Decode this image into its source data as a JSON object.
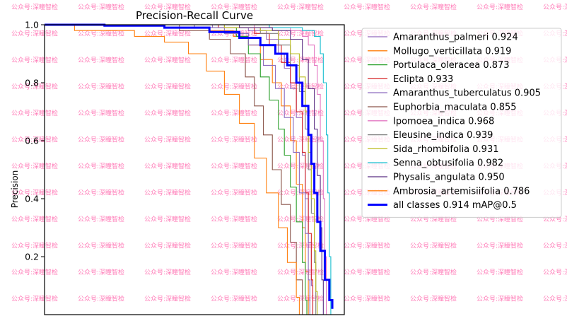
{
  "watermark": "公众号:深瞳智检",
  "chart_data": {
    "type": "line",
    "title": "Precision-Recall Curve",
    "xlabel": "",
    "ylabel": "Precision",
    "xlim": [
      0,
      1
    ],
    "ylim": [
      0,
      1
    ],
    "yticks": [
      0.2,
      0.4,
      0.6,
      0.8,
      1.0
    ],
    "ytick_labels": [
      "0.2",
      "0.4",
      "0.6",
      "0.8",
      "1.0"
    ],
    "legend_position": "top-right",
    "series": [
      {
        "name": "Amaranthus_palmeri 0.924",
        "color": "#9467bd",
        "bold": false,
        "points": [
          [
            0,
            1
          ],
          [
            0.56,
            0.99
          ],
          [
            0.68,
            0.98
          ],
          [
            0.74,
            0.95
          ],
          [
            0.78,
            0.9
          ],
          [
            0.8,
            0.85
          ],
          [
            0.82,
            0.78
          ],
          [
            0.84,
            0.68
          ],
          [
            0.86,
            0.55
          ],
          [
            0.87,
            0.4
          ],
          [
            0.88,
            0.25
          ],
          [
            0.89,
            0.1
          ],
          [
            0.895,
            0
          ]
        ]
      },
      {
        "name": "Mollugo_verticillata 0.919",
        "color": "#ff7f0e",
        "bold": false,
        "points": [
          [
            0,
            1
          ],
          [
            0.4,
            0.99
          ],
          [
            0.55,
            0.98
          ],
          [
            0.63,
            0.96
          ],
          [
            0.68,
            0.93
          ],
          [
            0.72,
            0.88
          ],
          [
            0.76,
            0.8
          ],
          [
            0.79,
            0.72
          ],
          [
            0.82,
            0.6
          ],
          [
            0.84,
            0.45
          ],
          [
            0.86,
            0.3
          ],
          [
            0.87,
            0.15
          ],
          [
            0.88,
            0
          ]
        ]
      },
      {
        "name": "Portulaca_oleracea 0.873",
        "color": "#2ca02c",
        "bold": false,
        "points": [
          [
            0,
            1
          ],
          [
            0.5,
            0.99
          ],
          [
            0.64,
            0.96
          ],
          [
            0.68,
            0.9
          ],
          [
            0.72,
            0.82
          ],
          [
            0.75,
            0.74
          ],
          [
            0.78,
            0.64
          ],
          [
            0.8,
            0.55
          ],
          [
            0.82,
            0.44
          ],
          [
            0.84,
            0.32
          ],
          [
            0.86,
            0.18
          ],
          [
            0.87,
            0.05
          ],
          [
            0.875,
            0
          ]
        ]
      },
      {
        "name": "Eclipta 0.933",
        "color": "#d62728",
        "bold": false,
        "points": [
          [
            0,
            1
          ],
          [
            0.58,
            0.99
          ],
          [
            0.7,
            0.97
          ],
          [
            0.75,
            0.93
          ],
          [
            0.79,
            0.87
          ],
          [
            0.82,
            0.8
          ],
          [
            0.84,
            0.7
          ],
          [
            0.86,
            0.56
          ],
          [
            0.87,
            0.42
          ],
          [
            0.88,
            0.28
          ],
          [
            0.89,
            0.12
          ],
          [
            0.895,
            0
          ]
        ]
      },
      {
        "name": "Amaranthus_tuberculatus 0.905",
        "color": "#8c6bbf",
        "bold": false,
        "points": [
          [
            0,
            1
          ],
          [
            0.5,
            0.99
          ],
          [
            0.6,
            0.97
          ],
          [
            0.68,
            0.93
          ],
          [
            0.73,
            0.86
          ],
          [
            0.77,
            0.78
          ],
          [
            0.8,
            0.68
          ],
          [
            0.83,
            0.56
          ],
          [
            0.85,
            0.42
          ],
          [
            0.87,
            0.28
          ],
          [
            0.88,
            0.12
          ],
          [
            0.885,
            0
          ]
        ]
      },
      {
        "name": "Euphorbia_maculata 0.855",
        "color": "#8c564b",
        "bold": false,
        "points": [
          [
            0,
            1
          ],
          [
            0.45,
            0.98
          ],
          [
            0.55,
            0.95
          ],
          [
            0.62,
            0.9
          ],
          [
            0.67,
            0.82
          ],
          [
            0.7,
            0.72
          ],
          [
            0.73,
            0.62
          ],
          [
            0.76,
            0.5
          ],
          [
            0.79,
            0.38
          ],
          [
            0.82,
            0.25
          ],
          [
            0.84,
            0.12
          ],
          [
            0.86,
            0
          ]
        ]
      },
      {
        "name": "Ipomoea_indica 0.968",
        "color": "#e377c2",
        "bold": false,
        "points": [
          [
            0,
            1
          ],
          [
            0.7,
            0.99
          ],
          [
            0.82,
            0.98
          ],
          [
            0.86,
            0.96
          ],
          [
            0.88,
            0.93
          ],
          [
            0.9,
            0.86
          ],
          [
            0.91,
            0.76
          ],
          [
            0.92,
            0.6
          ],
          [
            0.93,
            0.4
          ],
          [
            0.935,
            0.2
          ],
          [
            0.94,
            0
          ]
        ]
      },
      {
        "name": "Eleusine_indica 0.939",
        "color": "#7f7f7f",
        "bold": false,
        "points": [
          [
            0,
            1
          ],
          [
            0.6,
            0.99
          ],
          [
            0.72,
            0.97
          ],
          [
            0.78,
            0.93
          ],
          [
            0.82,
            0.86
          ],
          [
            0.85,
            0.77
          ],
          [
            0.87,
            0.64
          ],
          [
            0.88,
            0.5
          ],
          [
            0.89,
            0.35
          ],
          [
            0.9,
            0.18
          ],
          [
            0.905,
            0
          ]
        ]
      },
      {
        "name": "Sida_rhombifolia 0.931",
        "color": "#bcbd22",
        "bold": false,
        "points": [
          [
            0,
            1
          ],
          [
            0.6,
            0.99
          ],
          [
            0.72,
            0.98
          ],
          [
            0.78,
            0.95
          ],
          [
            0.82,
            0.9
          ],
          [
            0.85,
            0.82
          ],
          [
            0.87,
            0.7
          ],
          [
            0.88,
            0.56
          ],
          [
            0.89,
            0.4
          ],
          [
            0.9,
            0.22
          ],
          [
            0.905,
            0.08
          ],
          [
            0.91,
            0
          ]
        ]
      },
      {
        "name": "Senna_obtusifolia 0.982",
        "color": "#17becf",
        "bold": false,
        "points": [
          [
            0,
            1
          ],
          [
            0.75,
            0.99
          ],
          [
            0.86,
            0.98
          ],
          [
            0.9,
            0.96
          ],
          [
            0.92,
            0.9
          ],
          [
            0.93,
            0.8
          ],
          [
            0.94,
            0.62
          ],
          [
            0.945,
            0.42
          ],
          [
            0.95,
            0.2
          ],
          [
            0.955,
            0
          ]
        ]
      },
      {
        "name": "Physalis_angulata 0.950",
        "color": "#5a2d82",
        "bold": false,
        "points": [
          [
            0,
            1
          ],
          [
            0.65,
            0.99
          ],
          [
            0.76,
            0.98
          ],
          [
            0.82,
            0.95
          ],
          [
            0.86,
            0.88
          ],
          [
            0.88,
            0.78
          ],
          [
            0.9,
            0.64
          ],
          [
            0.91,
            0.48
          ],
          [
            0.92,
            0.3
          ],
          [
            0.925,
            0.12
          ],
          [
            0.93,
            0
          ]
        ]
      },
      {
        "name": "Ambrosia_artemisiifolia 0.786",
        "color": "#ff7f0e",
        "bold": false,
        "points": [
          [
            0,
            1
          ],
          [
            0.1,
            0.98
          ],
          [
            0.3,
            0.96
          ],
          [
            0.4,
            0.94
          ],
          [
            0.48,
            0.9
          ],
          [
            0.54,
            0.84
          ],
          [
            0.6,
            0.76
          ],
          [
            0.65,
            0.66
          ],
          [
            0.7,
            0.54
          ],
          [
            0.74,
            0.42
          ],
          [
            0.78,
            0.3
          ],
          [
            0.81,
            0.18
          ],
          [
            0.84,
            0.06
          ],
          [
            0.85,
            0
          ]
        ]
      },
      {
        "name": "all classes 0.914 mAP@0.5",
        "color": "#0000ff",
        "bold": true,
        "points": [
          [
            0,
            1
          ],
          [
            0.2,
            0.997
          ],
          [
            0.4,
            0.99
          ],
          [
            0.55,
            0.975
          ],
          [
            0.65,
            0.955
          ],
          [
            0.72,
            0.93
          ],
          [
            0.77,
            0.9
          ],
          [
            0.81,
            0.86
          ],
          [
            0.84,
            0.8
          ],
          [
            0.86,
            0.72
          ],
          [
            0.88,
            0.62
          ],
          [
            0.89,
            0.52
          ],
          [
            0.9,
            0.42
          ],
          [
            0.91,
            0.32
          ],
          [
            0.92,
            0.22
          ],
          [
            0.935,
            0.12
          ],
          [
            0.95,
            0.05
          ],
          [
            0.96,
            0.02
          ]
        ]
      }
    ]
  }
}
